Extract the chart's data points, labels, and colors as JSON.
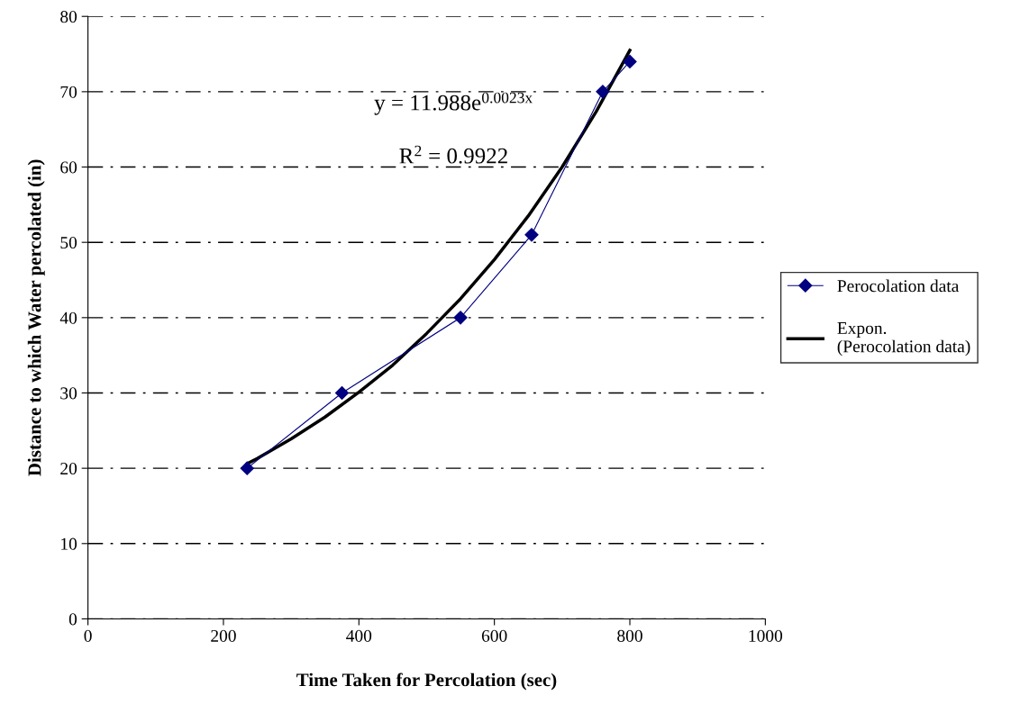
{
  "chart_data": {
    "type": "line",
    "xlabel": "Time Taken for Percolation (sec)",
    "ylabel": "Distance to which Water percolated (in)",
    "xlim": [
      0,
      1000
    ],
    "xticks": [
      0,
      200,
      400,
      600,
      800,
      1000
    ],
    "ylim": [
      0,
      80
    ],
    "yticks": [
      0,
      10,
      20,
      30,
      40,
      50,
      60,
      70,
      80
    ],
    "grid": "y",
    "legend": "right",
    "series": [
      {
        "name": "Perocolation data",
        "color": "#000080",
        "marker": "diamond",
        "x": [
          235,
          375,
          550,
          655,
          760,
          800
        ],
        "values": [
          20,
          30,
          40,
          51,
          70,
          74
        ]
      },
      {
        "name": "Expon.\n(Perocolation data)",
        "color": "#000000",
        "marker": "none",
        "x": [
          235,
          250,
          300,
          350,
          400,
          450,
          500,
          550,
          600,
          650,
          700,
          750,
          800
        ],
        "values": [
          20.6,
          21.3,
          23.9,
          26.8,
          30.1,
          33.7,
          37.9,
          42.5,
          47.7,
          53.5,
          60.0,
          67.3,
          75.5
        ]
      }
    ],
    "annotations": [
      "y = 11.988e$^{0.0023x}$",
      "R$^{2}$ = 0.9922"
    ]
  }
}
